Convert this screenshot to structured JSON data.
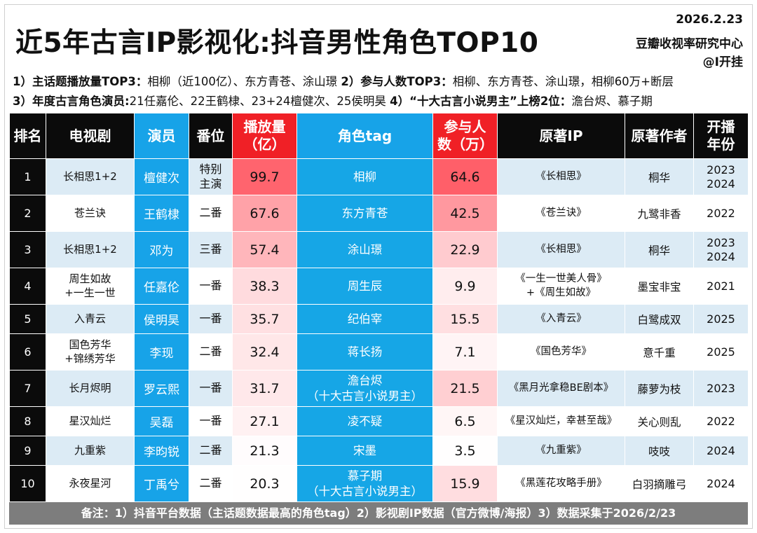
{
  "header": {
    "title": "近5年古言IP影视化:抖音男性角色TOP10",
    "date": "2026.2.23",
    "org": "豆瓣收视率研究中心",
    "author": "@I开挂"
  },
  "notes": {
    "line1_a_label": "1）主话题播放量TOP3：",
    "line1_a_text": "相柳（近100亿）、东方青苍、涂山璟",
    "line1_b_label": "2）参与人数TOP3：",
    "line1_b_text": "相柳、东方青苍、涂山璟，相柳60万+断层",
    "line2_a_label": "3）年度古言角色演员:",
    "line2_a_text": "21任嘉伦、22王鹤棣、23+24檀健次、25侯明昊",
    "line2_b_label": "4）“十大古言小说男主”上榜2位：",
    "line2_b_text": "澹台烬、慕子期"
  },
  "table": {
    "headers": {
      "rank": "排名",
      "drama": "电视剧",
      "actor": "演员",
      "position": "番位",
      "views": "播放量（亿）",
      "tag": "角色tag",
      "participants": "参与人数（万）",
      "ip": "原著IP",
      "ip_author": "原著作者",
      "year": "开播年份"
    },
    "rows": [
      {
        "rank": "1",
        "drama": "长相思1+2",
        "actor": "檀健次",
        "position": "特别\n主演",
        "views": "99.7",
        "tag": "相柳",
        "participants": "64.6",
        "ip": "《长相思》",
        "ip_author": "桐华",
        "year": "2023\n2024"
      },
      {
        "rank": "2",
        "drama": "苍兰诀",
        "actor": "王鹤棣",
        "position": "二番",
        "views": "67.6",
        "tag": "东方青苍",
        "participants": "42.5",
        "ip": "《苍兰诀》",
        "ip_author": "九鹭非香",
        "year": "2022"
      },
      {
        "rank": "3",
        "drama": "长相思1+2",
        "actor": "邓为",
        "position": "三番",
        "views": "57.4",
        "tag": "涂山璟",
        "participants": "22.9",
        "ip": "《长相思》",
        "ip_author": "桐华",
        "year": "2023\n2024"
      },
      {
        "rank": "4",
        "drama": "周生如故\n+一生一世",
        "actor": "任嘉伦",
        "position": "一番",
        "views": "38.3",
        "tag": "周生辰",
        "participants": "9.9",
        "ip": "《一生一世美人骨》\n+《周生如故》",
        "ip_author": "墨宝非宝",
        "year": "2021"
      },
      {
        "rank": "5",
        "drama": "入青云",
        "actor": "侯明昊",
        "position": "一番",
        "views": "35.7",
        "tag": "纪伯宰",
        "participants": "15.5",
        "ip": "《入青云》",
        "ip_author": "白鹭成双",
        "year": "2025"
      },
      {
        "rank": "6",
        "drama": "国色芳华\n+锦绣芳华",
        "actor": "李现",
        "position": "二番",
        "views": "32.4",
        "tag": "蒋长扬",
        "participants": "7.1",
        "ip": "《国色芳华》",
        "ip_author": "意千重",
        "year": "2025"
      },
      {
        "rank": "7",
        "drama": "长月烬明",
        "actor": "罗云熙",
        "position": "一番",
        "views": "31.7",
        "tag": "澹台烬\n（十大古言小说男主）",
        "participants": "21.5",
        "ip": "《黑月光拿稳BE剧本》",
        "ip_author": "藤萝为枝",
        "year": "2023"
      },
      {
        "rank": "8",
        "drama": "星汉灿烂",
        "actor": "吴磊",
        "position": "一番",
        "views": "27.1",
        "tag": "凌不疑",
        "participants": "6.5",
        "ip": "《星汉灿烂，幸甚至哉》",
        "ip_author": "关心则乱",
        "year": "2022"
      },
      {
        "rank": "9",
        "drama": "九重紫",
        "actor": "李昀锐",
        "position": "二番",
        "views": "21.3",
        "tag": "宋墨",
        "participants": "3.5",
        "ip": "《九重紫》",
        "ip_author": "吱吱",
        "year": "2024"
      },
      {
        "rank": "10",
        "drama": "永夜星河",
        "actor": "丁禹兮",
        "position": "二番",
        "views": "20.3",
        "tag": "慕子期\n（十大古言小说男主）",
        "participants": "15.9",
        "ip": "《黑莲花攻略手册》",
        "ip_author": "白羽摘雕弓",
        "year": "2024"
      }
    ]
  },
  "footer": {
    "text": "备注：1）抖音平台数据（主话题数据最高的角色tag）2）影视剧IP数据（官方微博/海报）3）数据采集于2026/2/23"
  },
  "colors": {
    "black": "#0b0b0b",
    "blue": "#17a3e8",
    "red": "#f02026",
    "light_blue": "#dcebf5",
    "footer_gray": "#7d7d7d"
  }
}
